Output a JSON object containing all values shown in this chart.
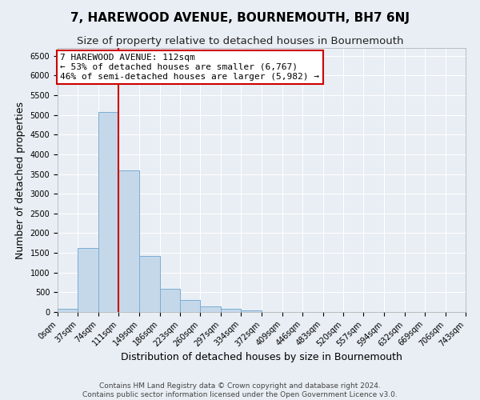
{
  "title": "7, HAREWOOD AVENUE, BOURNEMOUTH, BH7 6NJ",
  "subtitle": "Size of property relative to detached houses in Bournemouth",
  "xlabel": "Distribution of detached houses by size in Bournemouth",
  "ylabel": "Number of detached properties",
  "bin_edges": [
    0,
    37,
    74,
    111,
    149,
    186,
    223,
    260,
    297,
    334,
    372,
    409,
    446,
    483,
    520,
    557,
    594,
    632,
    669,
    706,
    743
  ],
  "bin_counts": [
    80,
    1630,
    5080,
    3590,
    1420,
    590,
    300,
    150,
    90,
    50,
    0,
    0,
    0,
    0,
    0,
    0,
    0,
    0,
    0,
    0
  ],
  "bar_color": "#c5d8ea",
  "bar_edge_color": "#7aadd4",
  "vline_x": 111,
  "vline_color": "#cc0000",
  "annotation_text": "7 HAREWOOD AVENUE: 112sqm\n← 53% of detached houses are smaller (6,767)\n46% of semi-detached houses are larger (5,982) →",
  "annotation_box_color": "#ffffff",
  "annotation_box_edge": "#cc0000",
  "ylim": [
    0,
    6700
  ],
  "xlim": [
    0,
    743
  ],
  "ann_x_data": 5,
  "ann_y_data": 6550,
  "footer_line1": "Contains HM Land Registry data © Crown copyright and database right 2024.",
  "footer_line2": "Contains public sector information licensed under the Open Government Licence v3.0.",
  "background_color": "#e8eef4",
  "grid_color": "#ffffff",
  "title_fontsize": 11,
  "subtitle_fontsize": 9.5,
  "axis_label_fontsize": 9,
  "tick_label_fontsize": 7,
  "footer_fontsize": 6.5,
  "annotation_fontsize": 8
}
